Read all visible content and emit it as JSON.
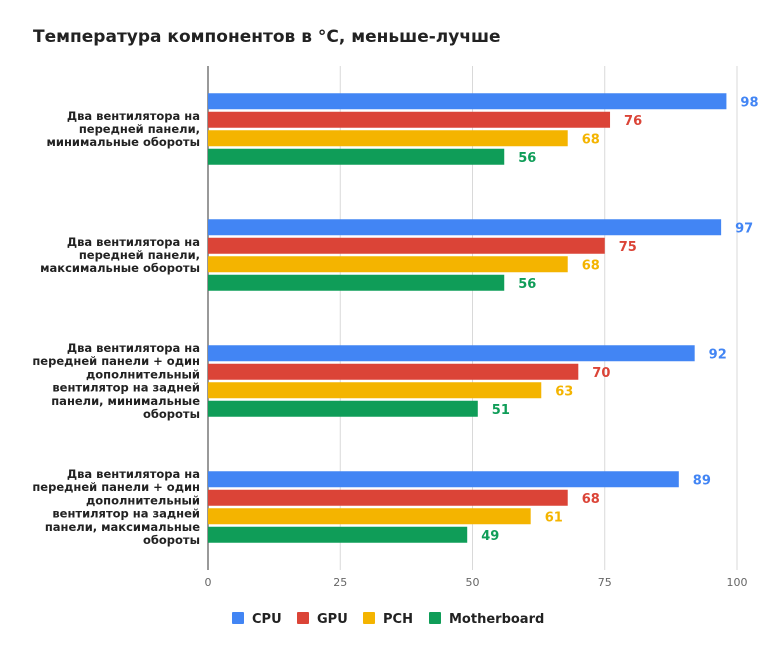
{
  "chart_data": {
    "type": "bar",
    "orientation": "horizontal",
    "title": "Температура компонентов в °C, меньше-лучше",
    "categories": [
      [
        "Два вентилятора на",
        "передней панели,",
        "минимальные обороты"
      ],
      [
        "Два вентилятора на",
        "передней панели,",
        "максимальные обороты"
      ],
      [
        "Два вентилятора на",
        "передней панели + один",
        "дополнительный",
        "вентилятор на задней",
        "панели, минимальные",
        "обороты"
      ],
      [
        "Два вентилятора на",
        "передней панели + один",
        "дополнительный",
        "вентилятор на задней",
        "панели, максимальные",
        "обороты"
      ]
    ],
    "series": [
      {
        "name": "CPU",
        "color": "#4285f4",
        "values": [
          98,
          97,
          92,
          89
        ]
      },
      {
        "name": "GPU",
        "color": "#db4437",
        "values": [
          76,
          75,
          70,
          68
        ]
      },
      {
        "name": "PCH",
        "color": "#f4b400",
        "values": [
          68,
          68,
          63,
          61
        ]
      },
      {
        "name": "Motherboard",
        "color": "#0f9d58",
        "values": [
          56,
          56,
          51,
          49
        ]
      }
    ],
    "xlim": [
      0,
      100
    ],
    "xticks": [
      0,
      25,
      50,
      75,
      100
    ],
    "grid": true,
    "legend_position": "bottom",
    "data_labels": true
  }
}
